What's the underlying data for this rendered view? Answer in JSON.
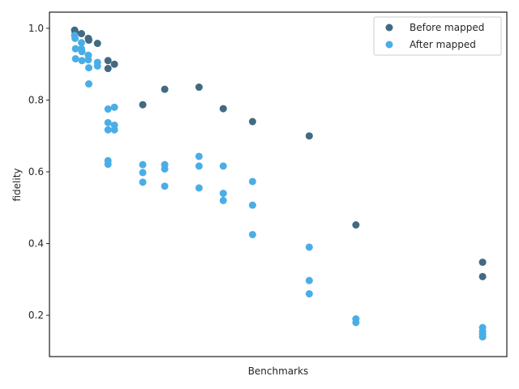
{
  "chart_data": {
    "type": "scatter",
    "xlabel": "Benchmarks",
    "ylabel": "fidelity",
    "xlim": [
      0,
      100
    ],
    "ylim": [
      0.085,
      1.045
    ],
    "yticks": [
      0.2,
      0.4,
      0.6,
      0.8,
      1.0
    ],
    "ytick_labels": [
      "0.2",
      "0.4",
      "0.6",
      "0.8",
      "1.0"
    ],
    "show_xticks": false,
    "grid": false,
    "legend_position": "top-right",
    "series": [
      {
        "name": "Before mapped",
        "color": "#426a82",
        "points": [
          [
            5.5,
            0.995
          ],
          [
            5.6,
            0.99
          ],
          [
            7.0,
            0.985
          ],
          [
            8.5,
            0.972
          ],
          [
            8.6,
            0.967
          ],
          [
            10.5,
            0.958
          ],
          [
            12.8,
            0.91
          ],
          [
            12.8,
            0.888
          ],
          [
            14.2,
            0.9
          ],
          [
            20.4,
            0.787
          ],
          [
            25.2,
            0.83
          ],
          [
            32.7,
            0.836
          ],
          [
            38.0,
            0.776
          ],
          [
            44.4,
            0.74
          ],
          [
            56.8,
            0.7
          ],
          [
            67.0,
            0.452
          ],
          [
            94.7,
            0.348
          ],
          [
            94.7,
            0.308
          ]
        ]
      },
      {
        "name": "After mapped",
        "color": "#4aaee6",
        "points": [
          [
            5.5,
            0.98
          ],
          [
            5.6,
            0.972
          ],
          [
            5.7,
            0.943
          ],
          [
            5.7,
            0.915
          ],
          [
            7.0,
            0.96
          ],
          [
            7.0,
            0.943
          ],
          [
            7.1,
            0.935
          ],
          [
            7.1,
            0.91
          ],
          [
            8.5,
            0.925
          ],
          [
            8.5,
            0.912
          ],
          [
            8.6,
            0.89
          ],
          [
            8.6,
            0.845
          ],
          [
            10.5,
            0.905
          ],
          [
            10.5,
            0.895
          ],
          [
            12.8,
            0.775
          ],
          [
            14.2,
            0.78
          ],
          [
            12.8,
            0.737
          ],
          [
            14.2,
            0.73
          ],
          [
            12.8,
            0.717
          ],
          [
            14.2,
            0.717
          ],
          [
            12.8,
            0.631
          ],
          [
            12.8,
            0.621
          ],
          [
            20.4,
            0.62
          ],
          [
            20.4,
            0.598
          ],
          [
            20.4,
            0.571
          ],
          [
            25.2,
            0.62
          ],
          [
            25.2,
            0.608
          ],
          [
            25.2,
            0.56
          ],
          [
            32.7,
            0.643
          ],
          [
            32.7,
            0.616
          ],
          [
            32.7,
            0.555
          ],
          [
            38.0,
            0.616
          ],
          [
            38.0,
            0.54
          ],
          [
            38.0,
            0.52
          ],
          [
            44.4,
            0.573
          ],
          [
            44.4,
            0.507
          ],
          [
            44.4,
            0.425
          ],
          [
            56.8,
            0.39
          ],
          [
            56.8,
            0.297
          ],
          [
            56.8,
            0.26
          ],
          [
            67.0,
            0.19
          ],
          [
            67.0,
            0.18
          ],
          [
            94.7,
            0.166
          ],
          [
            94.7,
            0.155
          ],
          [
            94.7,
            0.148
          ],
          [
            94.7,
            0.14
          ]
        ]
      }
    ]
  }
}
